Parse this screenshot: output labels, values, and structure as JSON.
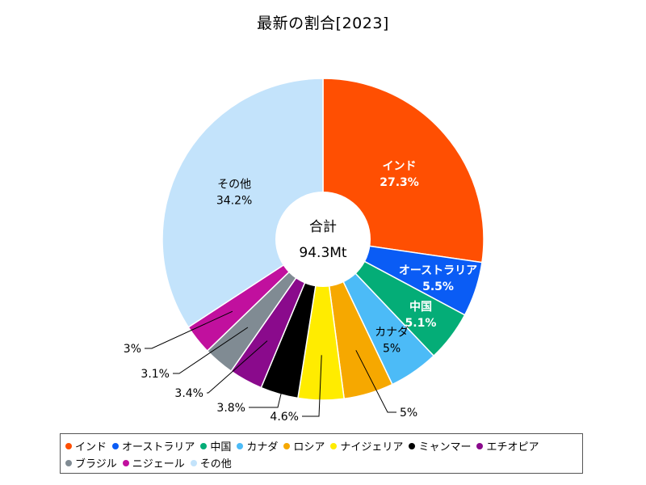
{
  "chart_data": {
    "type": "pie",
    "title": "最新の割合[2023]",
    "center_label": "合計",
    "center_value": "94.3Mt",
    "slices": [
      {
        "name": "インド",
        "value": 27.3,
        "label": "27.3%",
        "color": "#ff4f02"
      },
      {
        "name": "オーストラリア",
        "value": 5.5,
        "label": "5.5%",
        "color": "#0a5cf5"
      },
      {
        "name": "中国",
        "value": 5.1,
        "label": "5.1%",
        "color": "#04ad77"
      },
      {
        "name": "カナダ",
        "value": 5.0,
        "label": "5%",
        "color": "#4cbbf7"
      },
      {
        "name": "ロシア",
        "value": 5.0,
        "label": "5%",
        "color": "#f6a800"
      },
      {
        "name": "ナイジェリア",
        "value": 4.6,
        "label": "4.6%",
        "color": "#ffec00"
      },
      {
        "name": "ミャンマー",
        "value": 3.8,
        "label": "3.8%",
        "color": "#000000"
      },
      {
        "name": "エチオピア",
        "value": 3.4,
        "label": "3.4%",
        "color": "#8a0a8c"
      },
      {
        "name": "ブラジル",
        "value": 3.1,
        "label": "3.1%",
        "color": "#808b93"
      },
      {
        "name": "ニジェール",
        "value": 3.0,
        "label": "3%",
        "color": "#c1109e"
      },
      {
        "name": "その他",
        "value": 34.2,
        "label": "34.2%",
        "color": "#c3e3fb"
      }
    ],
    "legend_position": "bottom"
  }
}
